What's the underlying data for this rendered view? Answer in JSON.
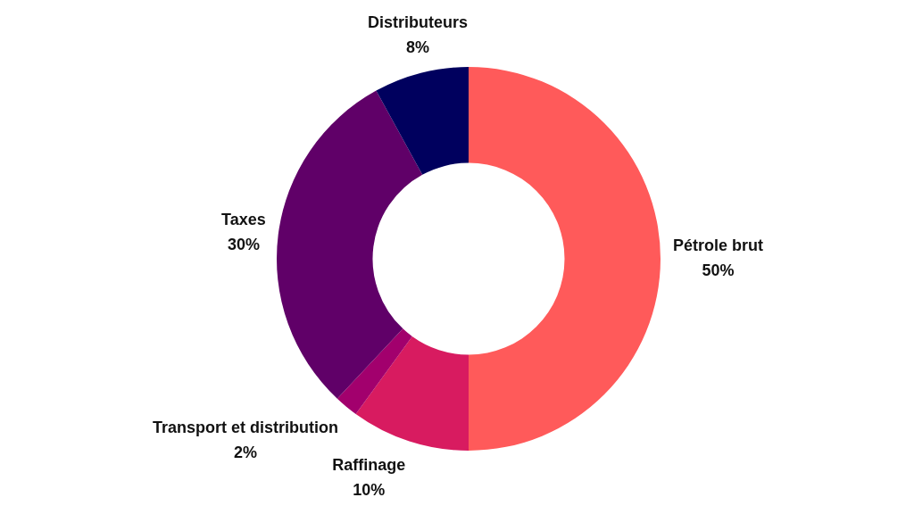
{
  "chart_data": {
    "type": "donut",
    "categories": [
      "Pétrole brut",
      "Raffinage",
      "Transport et distribution",
      "Taxes",
      "Distributeurs"
    ],
    "values": [
      50,
      10,
      2,
      30,
      8
    ],
    "value_labels": [
      "50%",
      "10%",
      "2%",
      "30%",
      "8%"
    ],
    "colors": [
      "#ff5a5a",
      "#d81b60",
      "#a2006d",
      "#600068",
      "#00005e"
    ],
    "legend": false
  }
}
